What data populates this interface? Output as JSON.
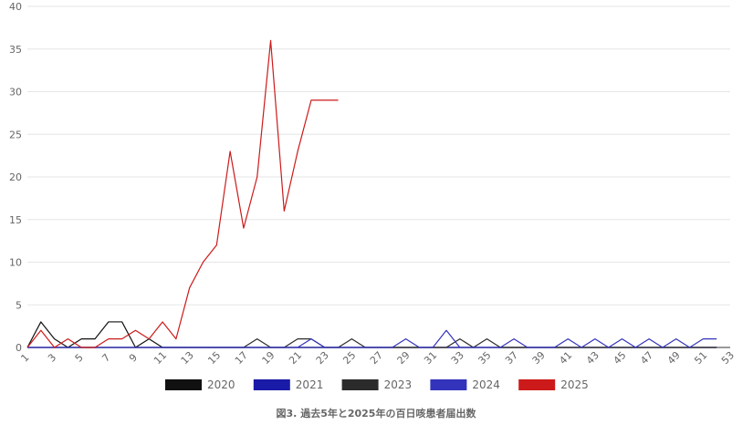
{
  "chart_data": {
    "type": "line",
    "title": "",
    "caption": "図3. 過去5年と2025年の百日咳患者届出数",
    "xlabel": "",
    "ylabel": "",
    "ylim": [
      0,
      40
    ],
    "yticks": [
      0,
      5,
      10,
      15,
      20,
      25,
      30,
      35,
      40
    ],
    "xlim": [
      1,
      53
    ],
    "xticks": [
      1,
      3,
      5,
      7,
      9,
      11,
      13,
      15,
      17,
      19,
      21,
      23,
      25,
      27,
      29,
      31,
      33,
      35,
      37,
      39,
      41,
      43,
      45,
      47,
      49,
      51,
      53
    ],
    "grid": "horizontal",
    "legend_position": "bottom",
    "series": [
      {
        "name": "2020",
        "color": "#111111",
        "x": [
          1,
          2,
          3,
          4,
          5,
          6,
          7,
          8,
          9,
          10,
          11,
          12,
          13,
          14,
          15,
          16,
          17,
          18,
          19,
          20,
          21,
          22,
          23,
          24,
          25,
          26,
          27,
          28,
          29,
          30,
          31,
          32,
          33,
          34,
          35,
          36,
          37,
          38,
          39,
          40,
          41,
          42,
          43,
          44,
          45,
          46,
          47,
          48,
          49,
          50,
          51,
          52
        ],
        "values": [
          0,
          3,
          1,
          0,
          1,
          1,
          3,
          3,
          0,
          1,
          0,
          0,
          0,
          0,
          0,
          0,
          0,
          0,
          0,
          0,
          0,
          0,
          0,
          0,
          0,
          0,
          0,
          0,
          0,
          0,
          0,
          0,
          0,
          0,
          0,
          0,
          0,
          0,
          0,
          0,
          0,
          0,
          0,
          0,
          0,
          0,
          0,
          0,
          0,
          0,
          0,
          0
        ]
      },
      {
        "name": "2021",
        "color": "#1a1aa8",
        "x": [
          1,
          2,
          3,
          4,
          5,
          6,
          7,
          8,
          9,
          10,
          11,
          12,
          13,
          14,
          15,
          16,
          17,
          18,
          19,
          20,
          21,
          22,
          23,
          24,
          25,
          26,
          27,
          28,
          29,
          30,
          31,
          32,
          33,
          34,
          35,
          36,
          37,
          38,
          39,
          40,
          41,
          42,
          43,
          44,
          45,
          46,
          47,
          48,
          49,
          50,
          51,
          52
        ],
        "values": [
          0,
          0,
          0,
          0,
          0,
          0,
          0,
          0,
          0,
          0,
          0,
          0,
          0,
          0,
          0,
          0,
          0,
          0,
          0,
          0,
          0,
          0,
          0,
          0,
          0,
          0,
          0,
          0,
          0,
          0,
          0,
          0,
          0,
          0,
          0,
          0,
          0,
          0,
          0,
          0,
          0,
          0,
          0,
          0,
          0,
          0,
          0,
          0,
          0,
          0,
          0,
          0
        ]
      },
      {
        "name": "2023",
        "color": "#2b2b2b",
        "x": [
          1,
          2,
          3,
          4,
          5,
          6,
          7,
          8,
          9,
          10,
          11,
          12,
          13,
          14,
          15,
          16,
          17,
          18,
          19,
          20,
          21,
          22,
          23,
          24,
          25,
          26,
          27,
          28,
          29,
          30,
          31,
          32,
          33,
          34,
          35,
          36,
          37,
          38,
          39,
          40,
          41,
          42,
          43,
          44,
          45,
          46,
          47,
          48,
          49,
          50,
          51,
          52
        ],
        "values": [
          0,
          0,
          0,
          0,
          0,
          0,
          0,
          0,
          0,
          0,
          0,
          0,
          0,
          0,
          0,
          0,
          0,
          1,
          0,
          0,
          1,
          1,
          0,
          0,
          1,
          0,
          0,
          0,
          0,
          0,
          0,
          0,
          1,
          0,
          1,
          0,
          0,
          0,
          0,
          0,
          0,
          0,
          0,
          0,
          0,
          0,
          0,
          0,
          0,
          0,
          0,
          0
        ]
      },
      {
        "name": "2024",
        "color": "#3333bb",
        "x": [
          1,
          2,
          3,
          4,
          5,
          6,
          7,
          8,
          9,
          10,
          11,
          12,
          13,
          14,
          15,
          16,
          17,
          18,
          19,
          20,
          21,
          22,
          23,
          24,
          25,
          26,
          27,
          28,
          29,
          30,
          31,
          32,
          33,
          34,
          35,
          36,
          37,
          38,
          39,
          40,
          41,
          42,
          43,
          44,
          45,
          46,
          47,
          48,
          49,
          50,
          51,
          52
        ],
        "values": [
          0,
          0,
          0,
          0,
          0,
          0,
          0,
          0,
          0,
          0,
          0,
          0,
          0,
          0,
          0,
          0,
          0,
          0,
          0,
          0,
          0,
          1,
          0,
          0,
          0,
          0,
          0,
          0,
          1,
          0,
          0,
          2,
          0,
          0,
          0,
          0,
          1,
          0,
          0,
          0,
          1,
          0,
          1,
          0,
          1,
          0,
          1,
          0,
          1,
          0,
          1,
          1
        ]
      },
      {
        "name": "2025",
        "color": "#cc1a1a",
        "x": [
          1,
          2,
          3,
          4,
          5,
          6,
          7,
          8,
          9,
          10,
          11,
          12,
          13,
          14,
          15,
          16,
          17,
          18,
          19,
          20,
          21,
          22,
          23,
          24
        ],
        "values": [
          0,
          2,
          0,
          1,
          0,
          0,
          1,
          1,
          2,
          1,
          3,
          1,
          7,
          10,
          12,
          23,
          14,
          20,
          36,
          16,
          23,
          29,
          29,
          29
        ]
      }
    ]
  }
}
